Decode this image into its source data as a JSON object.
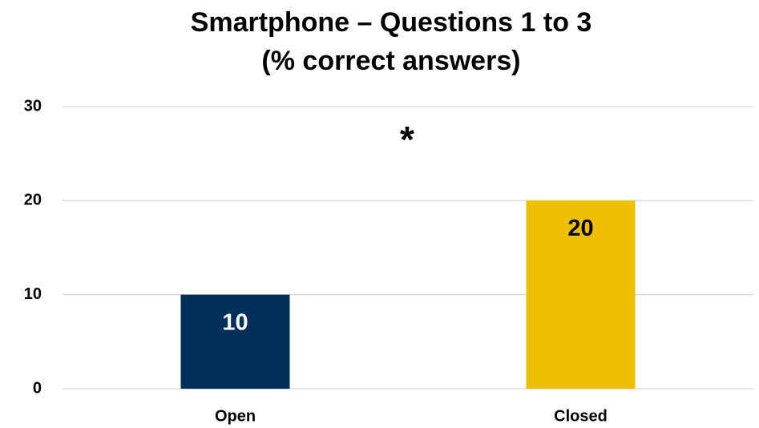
{
  "chart_data": {
    "type": "bar",
    "title": "Smartphone – Questions 1 to 3",
    "subtitle": "(% correct answers)",
    "annotation": "*",
    "categories": [
      "Open",
      "Closed"
    ],
    "values": [
      10,
      20
    ],
    "colors": [
      "#03305a",
      "#edbf00"
    ],
    "label_colors": [
      "#ffffff",
      "#000000"
    ],
    "ylim": [
      0,
      30
    ],
    "yticks": [
      0,
      10,
      20,
      30
    ],
    "grid": true
  }
}
